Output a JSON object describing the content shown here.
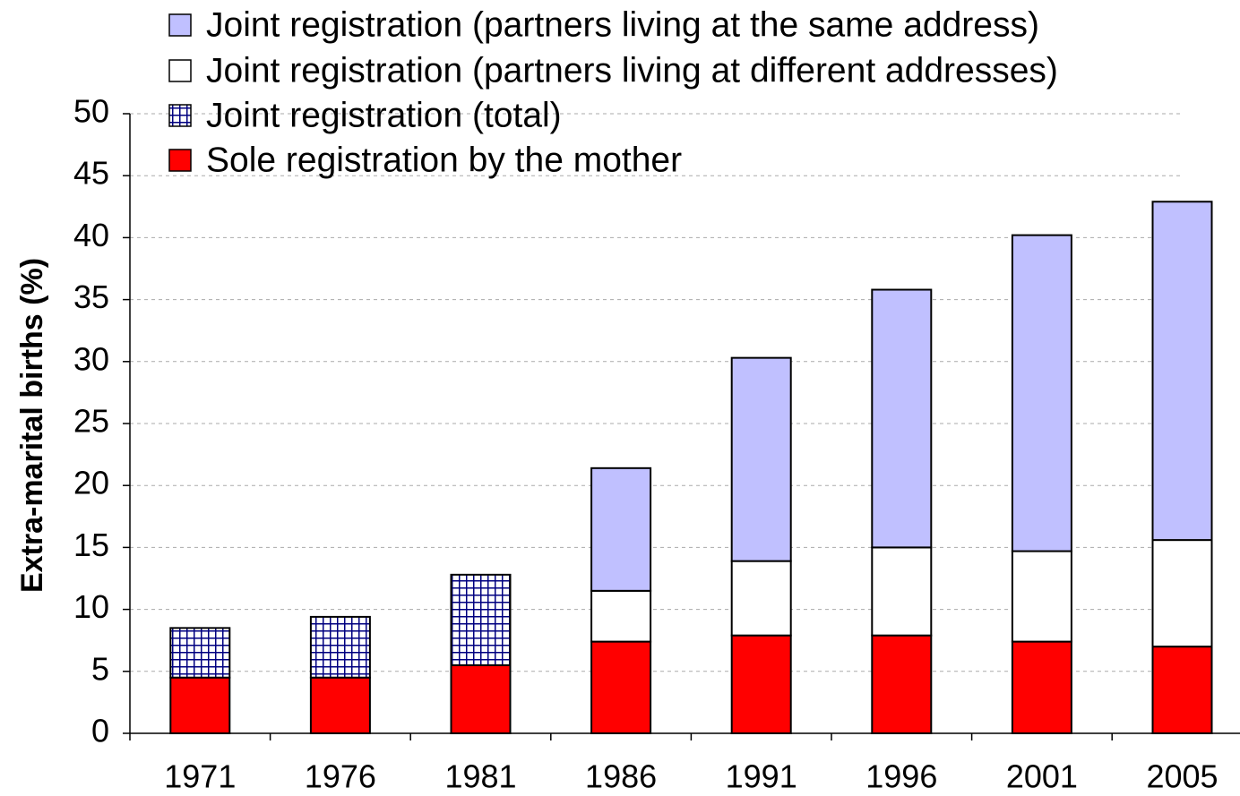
{
  "chart_data": {
    "type": "bar",
    "stacked": true,
    "y_label": "Extra-marital births (%)",
    "categories": [
      "1971",
      "1976",
      "1981",
      "1986",
      "1991",
      "1996",
      "2001",
      "2005"
    ],
    "series": [
      {
        "name": "Sole registration by the mother",
        "color": "#ff0000",
        "values": [
          4.5,
          4.5,
          5.5,
          7.4,
          7.9,
          7.9,
          7.4,
          7.0
        ]
      },
      {
        "name": "Joint registration (total)",
        "color": "#000080",
        "pattern": "grid",
        "values": [
          4.0,
          4.9,
          7.3,
          null,
          null,
          null,
          null,
          null
        ]
      },
      {
        "name": "Joint registration (partners living at different addresses)",
        "color": "#ffffff",
        "values": [
          null,
          null,
          null,
          4.1,
          6.0,
          7.1,
          7.3,
          8.6
        ]
      },
      {
        "name": "Joint registration (partners living at the same address)",
        "color": "#c0c0ff",
        "values": [
          null,
          null,
          null,
          9.9,
          16.4,
          20.8,
          25.5,
          27.3
        ]
      }
    ],
    "ylim": [
      0,
      50
    ],
    "yticks": [
      0,
      5,
      10,
      15,
      20,
      25,
      30,
      35,
      40,
      45,
      50
    ],
    "grid": true,
    "legend": "top-left"
  }
}
